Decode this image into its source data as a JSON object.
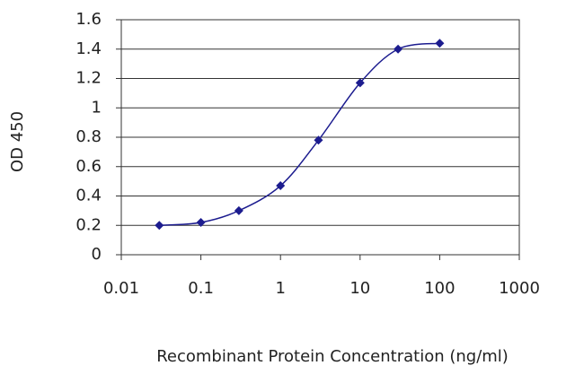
{
  "chart_data": {
    "type": "line",
    "x_label": "Recombinant Protein Concentration (ng/ml)",
    "y_label": "OD 450",
    "x_scale": "log",
    "grid": true,
    "series": [
      {
        "color": "#1c1c8f",
        "x": [
          0.03,
          0.1,
          0.3,
          1,
          3,
          10,
          30,
          100
        ],
        "values": [
          0.2,
          0.22,
          0.3,
          0.47,
          0.78,
          1.17,
          1.4,
          1.44
        ]
      }
    ],
    "xlim": [
      0.01,
      1000
    ],
    "xticks": [
      0.01,
      0.1,
      1,
      10,
      100,
      1000
    ],
    "ylim": [
      0,
      1.6
    ],
    "yticks": [
      0,
      0.2,
      0.4,
      0.6,
      0.8,
      1,
      1.2,
      1.4,
      1.6
    ]
  }
}
